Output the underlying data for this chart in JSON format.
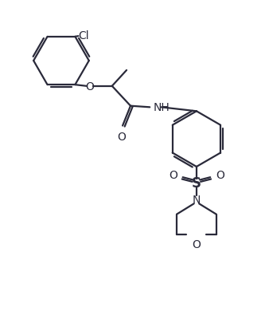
{
  "bg_color": "#ffffff",
  "line_color": "#2a2a3a",
  "line_width": 1.6,
  "font_size": 10,
  "figsize": [
    3.33,
    4.06
  ],
  "dpi": 100,
  "xlim": [
    0,
    10
  ],
  "ylim": [
    0,
    12
  ]
}
